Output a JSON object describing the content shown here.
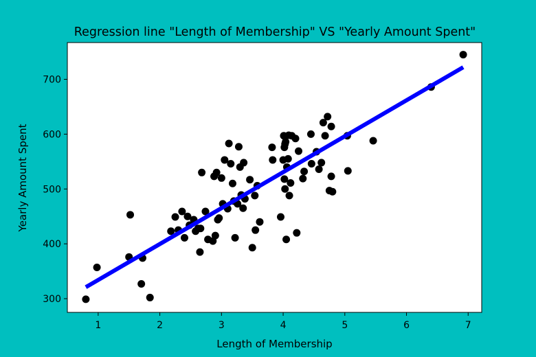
{
  "background_color": "#00bfbf",
  "chart_data": {
    "type": "scatter",
    "title": "Regression line \"Length of Membership\" VS \"Yearly Amount Spent\"",
    "xlabel": "Length of Membership",
    "ylabel": "Yearly Amount Spent",
    "xlim": [
      0.5,
      7.22
    ],
    "ylim": [
      275,
      767
    ],
    "xticks": [
      1,
      2,
      3,
      4,
      5,
      6,
      7
    ],
    "yticks": [
      300,
      400,
      500,
      600,
      700
    ],
    "grid": false,
    "point_color": "#000000",
    "line_color": "#0000ff",
    "scatter": {
      "x": [
        0.8,
        0.98,
        1.5,
        1.52,
        1.7,
        1.72,
        1.84,
        2.18,
        2.25,
        2.3,
        2.36,
        2.4,
        2.45,
        2.48,
        2.55,
        2.58,
        2.62,
        2.65,
        2.66,
        2.68,
        2.74,
        2.78,
        2.86,
        2.88,
        2.9,
        2.92,
        2.94,
        2.96,
        3.0,
        3.02,
        3.05,
        3.1,
        3.12,
        3.15,
        3.18,
        3.2,
        3.22,
        3.26,
        3.28,
        3.3,
        3.32,
        3.35,
        3.36,
        3.38,
        3.46,
        3.5,
        3.54,
        3.55,
        3.58,
        3.62,
        3.82,
        3.83,
        3.96,
        4.0,
        4.01,
        4.02,
        4.02,
        4.03,
        4.03,
        4.04,
        4.05,
        4.06,
        4.08,
        4.09,
        4.1,
        4.12,
        4.14,
        4.2,
        4.22,
        4.25,
        4.32,
        4.34,
        4.45,
        4.46,
        4.54,
        4.58,
        4.62,
        4.65,
        4.68,
        4.72,
        4.75,
        4.78,
        4.78,
        4.8,
        5.04,
        5.05,
        5.46,
        6.4,
        6.92
      ],
      "y": [
        299,
        357,
        376,
        453,
        327,
        374,
        302,
        423,
        449,
        425,
        459,
        411,
        450,
        434,
        444,
        423,
        428,
        385,
        428,
        530,
        459,
        408,
        405,
        523,
        415,
        530,
        444,
        447,
        520,
        473,
        553,
        464,
        583,
        546,
        510,
        478,
        411,
        473,
        577,
        540,
        489,
        465,
        548,
        482,
        517,
        393,
        488,
        425,
        506,
        440,
        576,
        553,
        449,
        553,
        597,
        576,
        518,
        500,
        582,
        586,
        408,
        540,
        555,
        598,
        488,
        511,
        597,
        592,
        420,
        569,
        519,
        532,
        600,
        546,
        568,
        536,
        548,
        621,
        597,
        632,
        497,
        523,
        614,
        495,
        597,
        533,
        588,
        686,
        745
      ]
    },
    "regression_line": {
      "x": [
        0.8,
        6.92
      ],
      "y": [
        321,
        722
      ]
    }
  }
}
